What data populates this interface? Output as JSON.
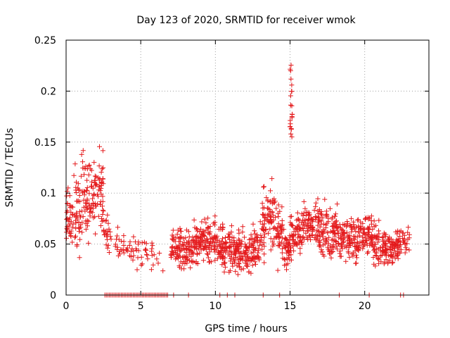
{
  "chart_data": {
    "type": "scatter",
    "title": "Day 123 of 2020, SRMTID for receiver wmok",
    "xlabel": "GPS time / hours",
    "ylabel": "SRMTID / TECUs",
    "xlim": [
      0,
      24.3
    ],
    "ylim": [
      0,
      0.25
    ],
    "xticks": [
      0,
      5,
      10,
      15,
      20
    ],
    "xtick_labels": [
      "0",
      "5",
      "10",
      "15",
      "20"
    ],
    "yticks": [
      0,
      0.05,
      0.1,
      0.15,
      0.2,
      0.25
    ],
    "ytick_labels": [
      "0",
      "0.05",
      "0.1",
      "0.15",
      "0.2",
      "0.25"
    ],
    "grid": true,
    "marker": "+",
    "series_color": "#e41a1c",
    "profile": {
      "x": [
        0,
        0.5,
        1.0,
        1.5,
        2.0,
        2.5,
        3.0,
        3.5,
        4.0,
        4.5,
        5.0,
        5.5,
        6.0,
        6.5,
        7.0,
        7.5,
        8.0,
        8.5,
        9.0,
        9.5,
        10.0,
        10.5,
        11.0,
        11.5,
        12.0,
        12.5,
        13.0,
        13.5,
        14.0,
        14.5,
        15.0,
        15.5,
        16.0,
        16.5,
        17.0,
        17.5,
        18.0,
        18.5,
        19.0,
        19.5,
        20.0,
        20.5,
        21.0,
        21.5,
        22.0,
        22.5
      ],
      "median": [
        0.075,
        0.085,
        0.095,
        0.1,
        0.105,
        0.06,
        0.05,
        0.048,
        0.045,
        0.043,
        0.045,
        0.04,
        0.035,
        0.032,
        0.045,
        0.045,
        0.047,
        0.05,
        0.052,
        0.055,
        0.05,
        0.045,
        0.045,
        0.045,
        0.042,
        0.045,
        0.07,
        0.075,
        0.06,
        0.045,
        0.055,
        0.065,
        0.068,
        0.07,
        0.065,
        0.06,
        0.058,
        0.055,
        0.055,
        0.058,
        0.06,
        0.05,
        0.048,
        0.045,
        0.05,
        0.055
      ],
      "spread": [
        0.02,
        0.03,
        0.03,
        0.025,
        0.025,
        0.015,
        0.012,
        0.012,
        0.012,
        0.012,
        0.012,
        0.01,
        0.008,
        0.008,
        0.012,
        0.015,
        0.015,
        0.015,
        0.015,
        0.015,
        0.015,
        0.015,
        0.015,
        0.015,
        0.015,
        0.015,
        0.025,
        0.025,
        0.02,
        0.015,
        0.015,
        0.015,
        0.015,
        0.018,
        0.018,
        0.018,
        0.018,
        0.015,
        0.015,
        0.015,
        0.015,
        0.015,
        0.012,
        0.012,
        0.012,
        0.012
      ],
      "density": [
        1,
        1,
        1,
        1,
        1,
        0.6,
        0.2,
        0.3,
        0.3,
        0.25,
        0.3,
        0.2,
        0.1,
        0,
        0.8,
        1,
        1,
        1,
        1,
        1,
        1,
        1,
        1,
        1,
        1,
        1,
        1,
        1,
        1,
        1,
        1,
        1,
        1,
        1,
        1,
        1,
        1,
        1,
        1,
        1,
        1,
        1,
        1,
        1,
        1,
        0.5
      ]
    },
    "spike": {
      "x_range": [
        15.0,
        15.15
      ],
      "y_range": [
        0.155,
        0.23
      ]
    },
    "zero_points_x": [
      2.6,
      2.7,
      2.8,
      2.9,
      3.0,
      3.1,
      3.2,
      3.3,
      3.4,
      3.5,
      3.6,
      3.7,
      3.8,
      3.9,
      4.0,
      4.1,
      4.2,
      4.3,
      4.4,
      4.5,
      4.6,
      4.7,
      4.8,
      4.9,
      5.0,
      5.1,
      5.2,
      5.3,
      5.4,
      5.5,
      5.6,
      5.7,
      5.8,
      5.9,
      6.0,
      6.1,
      6.2,
      6.3,
      6.4,
      6.5,
      6.6,
      6.7,
      6.8,
      7.2,
      8.2,
      10.3,
      10.8,
      11.3,
      13.2,
      14.3,
      18.3,
      20.3,
      22.4,
      22.6
    ]
  }
}
